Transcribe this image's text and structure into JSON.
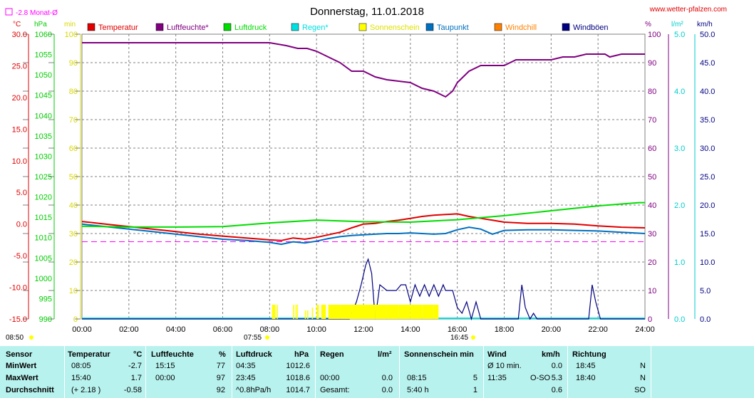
{
  "title": "Donnerstag, 11.01.2018",
  "website": "www.wetter-pfalzen.com",
  "monthly_avg_label": "-2.8 Monat-Ø",
  "sun_labels": {
    "start_left": "08:50",
    "rise": "07:55",
    "set": "16:45"
  },
  "colors": {
    "temperature": "#e00000",
    "humidity": "#800080",
    "pressure": "#00dd00",
    "rain": "#00e0e0",
    "sunshine": "#ffff00",
    "dewpoint": "#0070c0",
    "windchill": "#ff8000",
    "gusts": "#000080",
    "grid": "#808080",
    "table_bg": "#b7f2ee"
  },
  "axes": {
    "temp": {
      "unit": "°C",
      "ticks": [
        "30.0",
        "25.0",
        "20.0",
        "15.0",
        "10.0",
        "5.0",
        "0.0",
        "-5.0",
        "-10.0",
        "-15.0"
      ],
      "range": [
        -15,
        30
      ]
    },
    "pressure": {
      "unit": "hPa",
      "ticks": [
        "1060",
        "1055",
        "1050",
        "1045",
        "1040",
        "1035",
        "1030",
        "1025",
        "1020",
        "1015",
        "1010",
        "1005",
        "1000",
        "995",
        "990"
      ],
      "range": [
        990,
        1060
      ]
    },
    "sunmin": {
      "unit": "min",
      "ticks": [
        "100",
        "90",
        "80",
        "70",
        "60",
        "50",
        "40",
        "30",
        "20",
        "10",
        "0"
      ],
      "range": [
        0,
        100
      ]
    },
    "humidity": {
      "unit": "%",
      "ticks": [
        "100",
        "90",
        "80",
        "70",
        "60",
        "50",
        "40",
        "30",
        "20",
        "10",
        "0"
      ],
      "range": [
        0,
        100
      ]
    },
    "rain": {
      "unit": "l/m²",
      "ticks": [
        "5.0",
        "4.0",
        "3.0",
        "2.0",
        "1.0",
        "0.0"
      ],
      "range": [
        0,
        5
      ]
    },
    "wind": {
      "unit": "km/h",
      "ticks": [
        "50.0",
        "45.0",
        "40.0",
        "35.0",
        "30.0",
        "25.0",
        "20.0",
        "15.0",
        "10.0",
        "5.0",
        "0.0"
      ],
      "range": [
        0,
        50
      ]
    },
    "x_ticks": [
      "00:00",
      "02:00",
      "04:00",
      "06:00",
      "08:00",
      "10:00",
      "12:00",
      "14:00",
      "16:00",
      "18:00",
      "20:00",
      "22:00",
      "24:00"
    ]
  },
  "chart_data": {
    "type": "line",
    "title": "Donnerstag, 11.01.2018",
    "x_unit": "hours",
    "legend": [
      "Temperatur",
      "Luftfeuchte*",
      "Luftdruck",
      "Regen*",
      "Sonnenschein",
      "Taupunkt",
      "Windchill",
      "Windböen"
    ],
    "legend_placement": "top",
    "grid": true,
    "monthly_avg_temp": -2.8,
    "series": [
      {
        "name": "Temperatur",
        "axis": "temp",
        "x": [
          0,
          1,
          2,
          3,
          4,
          5,
          6,
          7,
          8,
          8.5,
          9,
          9.5,
          10,
          10.5,
          11,
          11.5,
          12,
          12.5,
          13,
          13.5,
          14,
          14.5,
          15,
          15.5,
          16,
          16.5,
          17,
          17.5,
          18,
          19,
          20,
          21,
          22,
          23,
          24
        ],
        "y": [
          0.4,
          0.0,
          -0.4,
          -0.8,
          -1.2,
          -1.6,
          -1.9,
          -2.2,
          -2.5,
          -2.6,
          -2.2,
          -2.4,
          -2.1,
          -1.7,
          -1.3,
          -0.6,
          0.0,
          0.1,
          0.4,
          0.6,
          0.9,
          1.2,
          1.4,
          1.5,
          1.6,
          1.2,
          0.9,
          0.6,
          0.3,
          0.1,
          0.1,
          0.0,
          -0.3,
          -0.5,
          -0.6
        ]
      },
      {
        "name": "Taupunkt",
        "axis": "temp",
        "x": [
          0,
          1,
          2,
          3,
          4,
          5,
          6,
          7,
          8,
          8.5,
          9,
          9.5,
          10,
          10.5,
          11,
          11.5,
          12,
          12.5,
          13,
          13.5,
          14,
          14.5,
          15,
          15.5,
          16,
          16.5,
          17,
          17.5,
          18,
          19,
          20,
          21,
          22,
          23,
          24
        ],
        "y": [
          0.0,
          -0.4,
          -0.8,
          -1.2,
          -1.6,
          -2.0,
          -2.4,
          -2.6,
          -2.9,
          -3.2,
          -2.8,
          -3.0,
          -2.7,
          -2.3,
          -2.0,
          -1.8,
          -1.7,
          -1.6,
          -1.5,
          -1.5,
          -1.4,
          -1.5,
          -1.6,
          -1.5,
          -0.9,
          -0.5,
          -0.8,
          -1.6,
          -1.0,
          -0.9,
          -0.9,
          -1.0,
          -1.1,
          -1.3,
          -1.5
        ]
      },
      {
        "name": "Luftfeuchte*",
        "axis": "humidity",
        "x": [
          0,
          2,
          4,
          6,
          8,
          8.7,
          9.2,
          9.6,
          10.0,
          10.5,
          11,
          11.5,
          12,
          12.5,
          13,
          14,
          14.5,
          15,
          15.5,
          15.8,
          16,
          16.5,
          17,
          17.5,
          18,
          18.5,
          19,
          20,
          20.5,
          21,
          21.5,
          22,
          22.3,
          22.5,
          23,
          24
        ],
        "y": [
          97,
          97,
          97,
          97,
          97,
          96,
          95,
          95,
          94,
          92,
          90,
          87,
          87,
          85,
          84,
          83,
          81,
          80,
          78,
          80,
          83,
          87,
          89,
          89,
          89,
          91,
          91,
          91,
          92,
          92,
          93,
          93,
          93,
          92,
          93,
          93
        ]
      },
      {
        "name": "Luftdruck",
        "axis": "pressure",
        "x": [
          0,
          2,
          4,
          6,
          8,
          10,
          12,
          14,
          16,
          18,
          20,
          22,
          23.75,
          24
        ],
        "y": [
          1012.8,
          1012.6,
          1012.6,
          1012.7,
          1013.6,
          1014.3,
          1013.9,
          1013.8,
          1014.4,
          1015.4,
          1016.6,
          1017.8,
          1018.6,
          1018.6
        ]
      },
      {
        "name": "Windböen",
        "axis": "wind",
        "x": [
          0,
          11.1,
          11.4,
          11.7,
          11.9,
          12.1,
          12.2,
          12.35,
          12.5,
          12.7,
          13,
          13.4,
          13.6,
          13.8,
          14,
          14.2,
          14.4,
          14.6,
          14.8,
          15.0,
          15.2,
          15.4,
          15.5,
          15.8,
          16,
          16.2,
          16.4,
          16.6,
          16.8,
          17,
          18.6,
          18.75,
          18.9,
          19.1,
          19.25,
          19.4,
          21.6,
          21.75,
          21.9,
          22.1,
          24
        ],
        "y": [
          0,
          0,
          0,
          3,
          6,
          9.5,
          10.5,
          8,
          0,
          6,
          5,
          5,
          6,
          6,
          3,
          6,
          4,
          6,
          4,
          6,
          4,
          6,
          5,
          5,
          2,
          1,
          3,
          0,
          3,
          0,
          0,
          6,
          2,
          0,
          1,
          0,
          0,
          6,
          3,
          0,
          0
        ]
      },
      {
        "name": "Sonnenschein",
        "axis": "sunmin",
        "type": "bar",
        "x_start": [
          8.1,
          8.3,
          9.0,
          9.1,
          9.15,
          9.5,
          9.6,
          9.8,
          10.0,
          10.2,
          10.5,
          11.0,
          11.5,
          12.0,
          12.5,
          13.0,
          13.5,
          14.0,
          14.5,
          15.0
        ],
        "x_end": [
          8.25,
          8.35,
          9.05,
          9.12,
          9.2,
          9.55,
          9.65,
          9.85,
          10.1,
          10.4,
          11.0,
          11.5,
          12.0,
          12.5,
          13.0,
          13.5,
          14.0,
          14.5,
          15.0,
          15.2
        ],
        "y": [
          5,
          5,
          5,
          5,
          5,
          3,
          3,
          4,
          5,
          5,
          5,
          5,
          5,
          5,
          5,
          5,
          5,
          5,
          5,
          5
        ]
      }
    ]
  },
  "table": {
    "headers": {
      "sensor": "Sensor",
      "temp": "Temperatur",
      "temp_unit": "°C",
      "hum": "Luftfeuchte",
      "hum_unit": "%",
      "press": "Luftdruck",
      "press_unit": "hPa",
      "rain": "Regen",
      "rain_unit": "l/m²",
      "sun": "Sonnenschein min",
      "wind": "Wind",
      "wind_unit": "km/h",
      "dir": "Richtung"
    },
    "rows": [
      {
        "label": "MinWert",
        "t_time": "08:05",
        "t_val": "-2.7",
        "h_time": "15:15",
        "h_val": "77",
        "p_time": "04:35",
        "p_val": "1012.6",
        "r_time": "",
        "r_val": "",
        "s_time": "",
        "s_val": "",
        "w_time": "Ø 10 min.",
        "w_dir": "",
        "w_val": "0.0",
        "d_time": "18:45",
        "d_val": "N"
      },
      {
        "label": "MaxWert",
        "t_time": "15:40",
        "t_val": "1.7",
        "h_time": "00:00",
        "h_val": "97",
        "p_time": "23:45",
        "p_val": "1018.6",
        "r_time": "00:00",
        "r_val": "0.0",
        "s_time": "08:15",
        "s_val": "5",
        "w_time": "11:35",
        "w_dir": "O-SO",
        "w_val": "5.3",
        "d_time": "18:40",
        "d_val": "N"
      },
      {
        "label": "Durchschnitt",
        "t_time": "(+ 2.18 )",
        "t_val": "-0.58",
        "h_time": "",
        "h_val": "92",
        "p_time": "^0.8hPa/h",
        "p_val": "1014.7",
        "r_time": "Gesamt:",
        "r_val": "0.0",
        "s_time": "5:40 h",
        "s_val": "1",
        "w_time": "",
        "w_dir": "",
        "w_val": "0.6",
        "d_time": "",
        "d_val": "SO"
      }
    ]
  }
}
